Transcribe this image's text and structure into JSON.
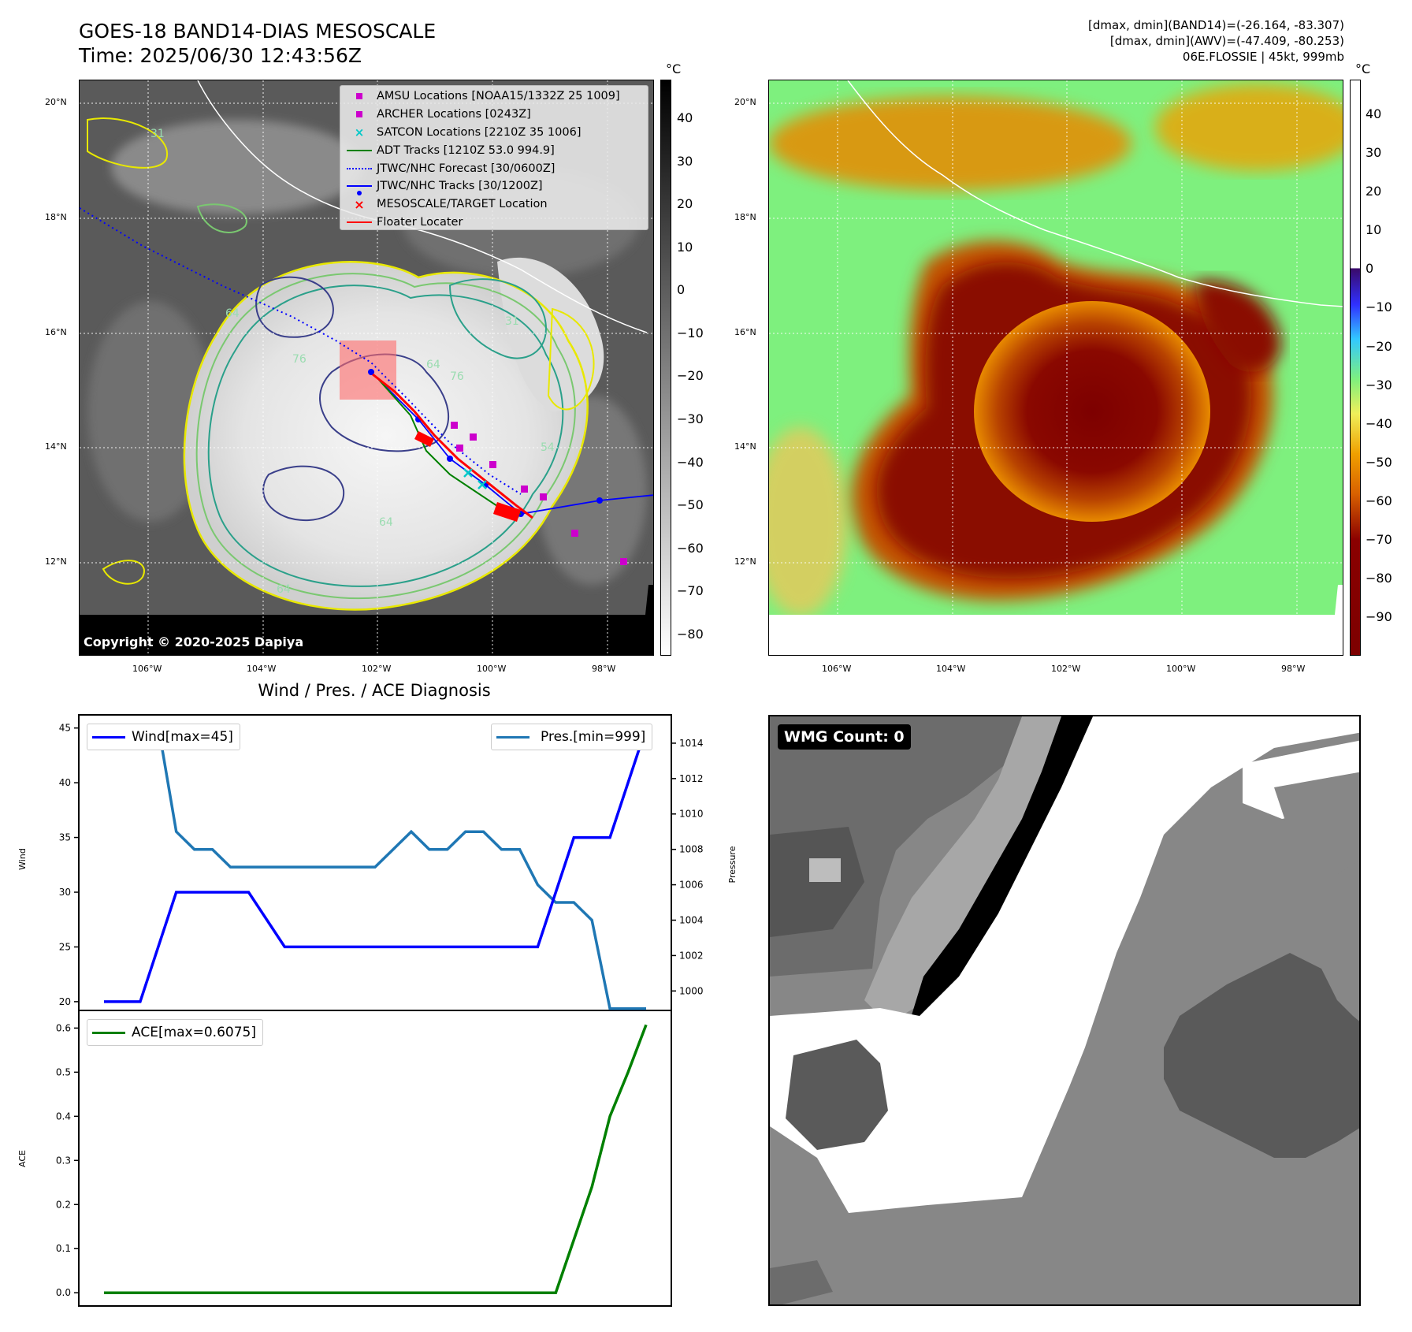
{
  "header": {
    "title_line1": "GOES-18 BAND14-DIAS MESOSCALE",
    "title_line2": "Time: 2025/06/30 12:43:56Z",
    "info_line1": "[dmax, dmin](BAND14)=(-26.164, -83.307)",
    "info_line2": "[dmax, dmin](AWV)=(-47.409, -80.253)",
    "info_line3": "06E.FLOSSIE | 45kt, 999mb"
  },
  "map_axes": {
    "lat_labels": [
      "20°N",
      "18°N",
      "16°N",
      "14°N",
      "12°N"
    ],
    "lon_labels": [
      "106°W",
      "104°W",
      "102°W",
      "100°W",
      "98°W"
    ],
    "lat_values": [
      20,
      18,
      16,
      14,
      12
    ],
    "lon_values": [
      -106,
      -104,
      -102,
      -100,
      -98
    ]
  },
  "ir_panel": {
    "colorbar_unit": "°C",
    "colorbar_ticks": [
      "40",
      "30",
      "20",
      "10",
      "0",
      "−10",
      "−20",
      "−30",
      "−40",
      "−50",
      "−60",
      "−70",
      "−80"
    ],
    "colorbar_values": [
      40,
      30,
      20,
      10,
      0,
      -10,
      -20,
      -30,
      -40,
      -50,
      -60,
      -70,
      -80
    ],
    "colorbar_range": [
      -85,
      49
    ],
    "copyright": "Copyright © 2020-2025 Dapiya",
    "contour_labels": [
      "31",
      "54",
      "64",
      "76",
      "54",
      "64",
      "76",
      "51",
      "31"
    ],
    "legend": [
      {
        "label": "AMSU Locations [NOAA15/1332Z 25 1009]",
        "icon": "magenta-square",
        "color": "#cc00cc"
      },
      {
        "label": "ARCHER Locations [0243Z]",
        "icon": "magenta-square",
        "color": "#cc00cc"
      },
      {
        "label": "SATCON Locations [2210Z 35 1006]",
        "icon": "cyan-x",
        "color": "#00c8c8"
      },
      {
        "label": "ADT Tracks [1210Z 53.0 994.9]",
        "icon": "green-line",
        "color": "#008000"
      },
      {
        "label": "JTWC/NHC Forecast [30/0600Z]",
        "icon": "blue-dotted-line",
        "color": "#0000ff"
      },
      {
        "label": "JTWC/NHC Tracks [30/1200Z]",
        "icon": "blue-line-dot",
        "color": "#0000ff"
      },
      {
        "label": "MESOSCALE/TARGET Location",
        "icon": "red-x",
        "color": "#ff0000"
      },
      {
        "label": "Floater Locater",
        "icon": "red-line",
        "color": "#ff0000"
      }
    ]
  },
  "awv_panel": {
    "colorbar_unit": "°C",
    "colorbar_ticks": [
      "40",
      "30",
      "20",
      "10",
      "0",
      "−10",
      "−20",
      "−30",
      "−40",
      "−50",
      "−60",
      "−70",
      "−80",
      "−90"
    ],
    "colorbar_values": [
      40,
      30,
      20,
      10,
      0,
      -10,
      -20,
      -30,
      -40,
      -50,
      -60,
      -70,
      -80,
      -90
    ],
    "colorbar_range": [
      -100,
      49
    ]
  },
  "diagnosis": {
    "title": "Wind / Pres. / ACE Diagnosis",
    "wind_ylabel": "Wind",
    "pres_ylabel": "Pressure",
    "ace_ylabel": "ACE",
    "wind_legend": "Wind[max=45]",
    "pres_legend": "Pres.[min=999]",
    "ace_legend": "ACE[max=0.6075]",
    "wind_ticks": [
      "45",
      "40",
      "35",
      "30",
      "25",
      "20"
    ],
    "pres_ticks": [
      "1014",
      "1012",
      "1010",
      "1008",
      "1006",
      "1004",
      "1002",
      "1000"
    ],
    "ace_ticks": [
      "0.6",
      "0.5",
      "0.4",
      "0.3",
      "0.2",
      "0.1",
      "0.0"
    ]
  },
  "wmg": {
    "label": "WMG Count: 0"
  },
  "chart_data": [
    {
      "type": "line",
      "title": "Wind / Pres. / ACE Diagnosis",
      "ylabel": "Wind",
      "ylim": [
        19.2,
        46.2
      ],
      "series": [
        {
          "name": "Wind[max=45]",
          "color": "#0000ff",
          "x": [
            0,
            2,
            4,
            6,
            8,
            10,
            12,
            14,
            16,
            18,
            20,
            22,
            24,
            26,
            28,
            30
          ],
          "values": [
            20,
            20,
            30,
            30,
            30,
            25,
            25,
            25,
            25,
            25,
            25,
            25,
            25,
            35,
            35,
            45
          ]
        }
      ]
    },
    {
      "type": "line",
      "ylabel": "Pressure",
      "ylim": [
        998.9,
        1015.6
      ],
      "series": [
        {
          "name": "Pres.[min=999]",
          "color": "#1f77b4",
          "x": [
            0,
            1,
            2,
            3,
            4,
            5,
            6,
            7,
            8,
            9,
            10,
            11,
            12,
            13,
            14,
            15,
            16,
            17,
            18,
            19,
            20,
            21,
            22,
            23,
            24,
            25,
            26,
            27,
            28,
            29,
            30
          ],
          "values": [
            1015,
            1015,
            1015,
            1015,
            1009,
            1008,
            1008,
            1007,
            1007,
            1007,
            1007,
            1007,
            1007,
            1007,
            1007,
            1007,
            1008,
            1009,
            1008,
            1008,
            1009,
            1009,
            1008,
            1008,
            1006,
            1005,
            1005,
            1004,
            999,
            999,
            999
          ]
        }
      ]
    },
    {
      "type": "line",
      "ylabel": "ACE",
      "ylim": [
        -0.03,
        0.64
      ],
      "series": [
        {
          "name": "ACE[max=0.6075]",
          "color": "#008000",
          "x": [
            0,
            5,
            10,
            15,
            20,
            25,
            26,
            27,
            28,
            29,
            30
          ],
          "values": [
            0,
            0,
            0,
            0,
            0,
            0,
            0.12,
            0.24,
            0.4,
            0.5,
            0.6075
          ]
        }
      ]
    }
  ]
}
